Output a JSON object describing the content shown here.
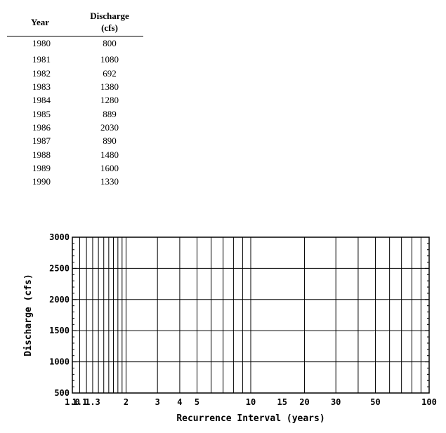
{
  "table": {
    "headers": {
      "year": "Year",
      "discharge": "Discharge",
      "unit": "(cfs)"
    },
    "rows": [
      {
        "year": "1980",
        "discharge": "800"
      },
      {
        "year": "1981",
        "discharge": "1080"
      },
      {
        "year": "1982",
        "discharge": "692"
      },
      {
        "year": "1983",
        "discharge": "1380"
      },
      {
        "year": "1984",
        "discharge": "1280"
      },
      {
        "year": "1985",
        "discharge": "889"
      },
      {
        "year": "1986",
        "discharge": "2030"
      },
      {
        "year": "1987",
        "discharge": "890"
      },
      {
        "year": "1988",
        "discharge": "1480"
      },
      {
        "year": "1989",
        "discharge": "1600"
      },
      {
        "year": "1990",
        "discharge": "1330"
      }
    ]
  },
  "chart_data": {
    "type": "scatter",
    "title": "",
    "xlabel": "Recurrence Interval (years)",
    "ylabel": "Discharge (cfs)",
    "x_scale": "log",
    "xlim": [
      1,
      100
    ],
    "ylim": [
      500,
      3000
    ],
    "x_gridlines": [
      1.1,
      1.2,
      1.3,
      1.4,
      1.5,
      1.6,
      1.7,
      1.8,
      1.9,
      2,
      3,
      4,
      5,
      6,
      7,
      8,
      9,
      10,
      20,
      30,
      40,
      50,
      60,
      70,
      80,
      90
    ],
    "x_ticklabels": [
      "1.0",
      "1.1",
      "1.3",
      "2",
      "3",
      "4",
      "5",
      "10",
      "15",
      "20",
      "30",
      "50",
      "100"
    ],
    "x_ticklabel_values": [
      1,
      1.1,
      1.3,
      2,
      3,
      4,
      5,
      10,
      15,
      20,
      30,
      50,
      100
    ],
    "y_ticks": [
      500,
      1000,
      1500,
      2000,
      2500,
      3000
    ],
    "y_minor_step": 100,
    "grid": true,
    "series": []
  }
}
